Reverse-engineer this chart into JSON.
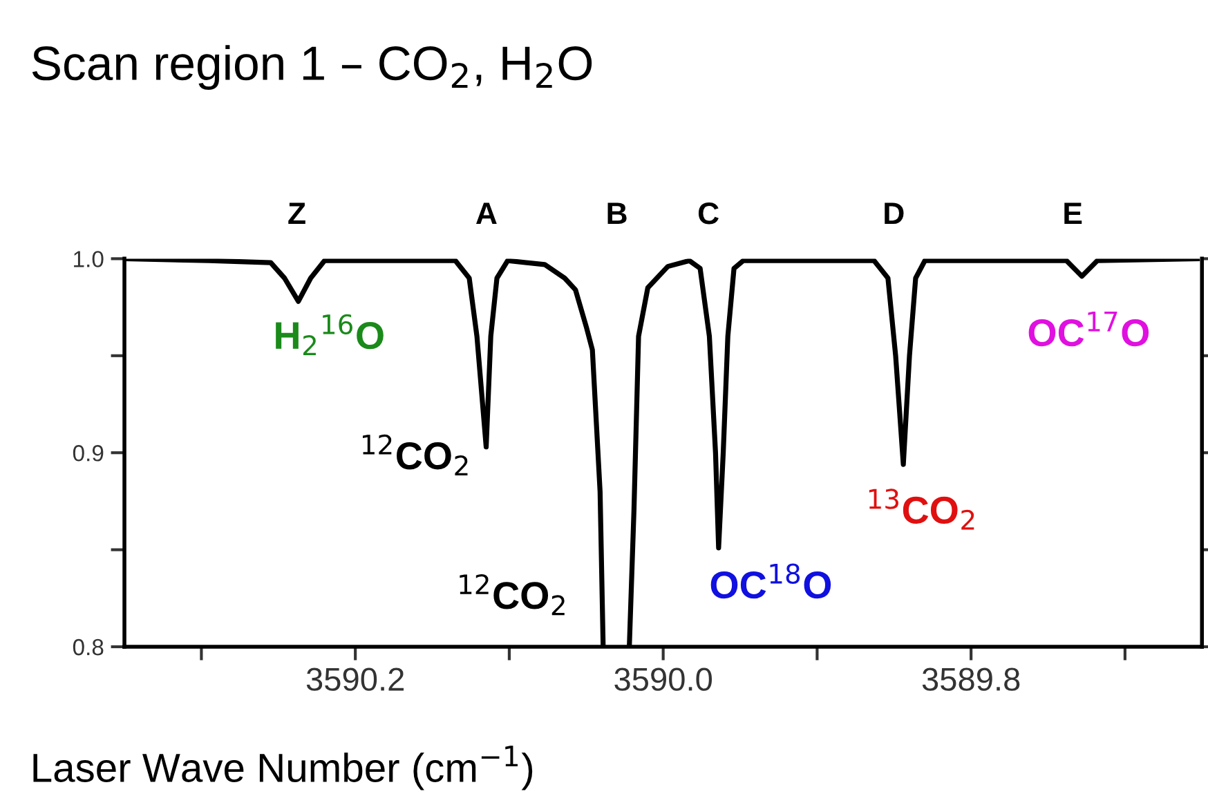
{
  "chart_data": {
    "type": "line",
    "title": "Scan region 1 – CO$_{2}$, H$_{2}$O",
    "xlabel": "Laser Wave Number (cm$^{−1}$)",
    "series": [
      {
        "color": "#000000",
        "x": [
          3590.349,
          3590.295,
          3590.255,
          3590.246,
          3590.237,
          3590.229,
          3590.22,
          3590.135,
          3590.126,
          3590.121,
          3590.115,
          3590.112,
          3590.108,
          3590.101,
          3590.077,
          3590.064,
          3590.057,
          3590.05,
          3590.046,
          3590.041,
          3590.039,
          3590.03,
          3590.022,
          3590.019,
          3590.016,
          3590.01,
          3589.997,
          3589.983,
          3589.976,
          3589.97,
          3589.966,
          3589.964,
          3589.961,
          3589.958,
          3589.954,
          3589.948,
          3589.863,
          3589.854,
          3589.849,
          3589.844,
          3589.84,
          3589.836,
          3589.83,
          3589.738,
          3589.728,
          3589.718,
          3589.653
        ],
        "values": [
          1.0,
          0.999,
          0.998,
          0.99,
          0.978,
          0.99,
          0.999,
          0.999,
          0.99,
          0.96,
          0.903,
          0.96,
          0.99,
          0.999,
          0.997,
          0.99,
          0.984,
          0.965,
          0.953,
          0.88,
          0.8,
          null,
          0.8,
          0.87,
          0.96,
          0.985,
          0.996,
          0.999,
          0.995,
          0.96,
          0.9,
          0.851,
          0.9,
          0.96,
          0.995,
          0.999,
          0.999,
          0.99,
          0.95,
          0.894,
          0.95,
          0.99,
          0.999,
          0.999,
          0.991,
          0.999,
          1.0
        ]
      }
    ],
    "xlim": [
      3590.35,
      3589.65
    ],
    "ylim": [
      0.8,
      1.0
    ],
    "xticks": [
      {
        "value": 3590.3,
        "label": null
      },
      {
        "value": 3590.2,
        "label": "3590.2"
      },
      {
        "value": 3590.1,
        "label": null
      },
      {
        "value": 3590.0,
        "label": "3590.0"
      },
      {
        "value": 3589.9,
        "label": null
      },
      {
        "value": 3589.8,
        "label": "3589.8"
      },
      {
        "value": 3589.7,
        "label": null
      }
    ],
    "yticks": [
      {
        "value": 0.8,
        "label": "0.8"
      },
      {
        "value": 0.85,
        "label": null
      },
      {
        "value": 0.9,
        "label": "0.9"
      },
      {
        "value": 0.95,
        "label": null
      },
      {
        "value": 1.0,
        "label": "1.0"
      }
    ],
    "grid": false,
    "legend": false,
    "marker": "none",
    "line_style": "solid",
    "annotations": [
      "Z",
      "A",
      "B",
      "C",
      "D",
      "E",
      "H$_{2}$$^{16}$O",
      "$^{12}$CO$_{2}$",
      "$^{12}$CO$_{2}$",
      "OC$^{18}$O",
      "$^{13}$CO$_{2}$",
      "OC$^{17}$O"
    ]
  }
}
